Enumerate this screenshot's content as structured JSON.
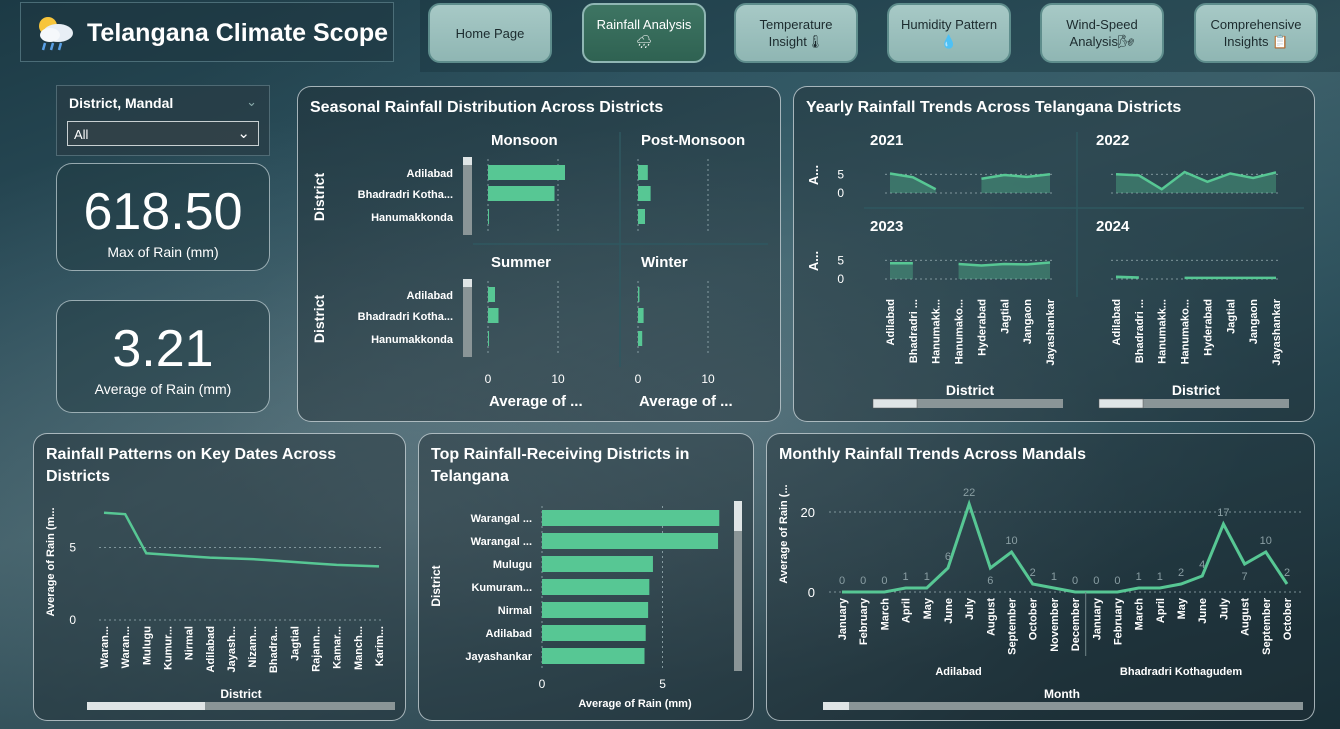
{
  "header": {
    "title": "Telangana Climate Scope"
  },
  "nav": {
    "home": "Home Page",
    "rainfall": "Rainfall Analysis🌧",
    "temperature": "Temperature Insight🌡",
    "humidity": "Humidity Pattern 💧",
    "wind": "Wind-Speed Analysis🌬",
    "comprehensive": "Comprehensive Insights 📋"
  },
  "slicer": {
    "label": "District, Mandal",
    "value": "All"
  },
  "cards": {
    "max_rain": {
      "value": "618.50",
      "label": "Max of Rain (mm)"
    },
    "avg_rain": {
      "value": "3.21",
      "label": "Average of Rain (mm)"
    }
  },
  "panels": {
    "seasonal": "Seasonal Rainfall Distribution Across Districts",
    "yearly": "Yearly Rainfall Trends Across Telangana Districts",
    "key_dates": "Rainfall Patterns on Key Dates Across Districts",
    "top_districts": "Top Rainfall-Receiving Districts in Telangana",
    "monthly": "Monthly Rainfall Trends Across Mandals"
  },
  "colors": {
    "accent": "#57c794",
    "grid": "#9ab0b5"
  },
  "chart_data": [
    {
      "type": "bar",
      "title": "Seasonal Rainfall Distribution Across Districts",
      "ylabel": "District",
      "xlabel": "Average of ...",
      "categories": [
        "Adilabad",
        "Bhadradri Kotha...",
        "Hanumakkonda"
      ],
      "xlim": [
        0,
        15
      ],
      "x_ticks": [
        "0",
        "10"
      ],
      "panels": [
        {
          "name": "Monsoon",
          "values": [
            11.0,
            9.5,
            0
          ]
        },
        {
          "name": "Post-Monsoon",
          "values": [
            1.4,
            1.8,
            1.0
          ]
        },
        {
          "name": "Summer",
          "values": [
            1.0,
            1.5,
            0.1
          ]
        },
        {
          "name": "Winter",
          "values": [
            0.2,
            0.8,
            0.6
          ]
        }
      ]
    },
    {
      "type": "area",
      "title": "Yearly Rainfall Trends Across Telangana Districts",
      "ylabel": "A...",
      "xlabel": "District",
      "categories": [
        "Adilabad",
        "Bhadradri ...",
        "Hanumakk...",
        "Hanumako...",
        "Hyderabad",
        "Jagtial",
        "Jangaon",
        "Jayashankar"
      ],
      "y_ticks": [
        "0",
        "5"
      ],
      "ylim": [
        0,
        8
      ],
      "panels": [
        {
          "name": "2021",
          "values": [
            5.2,
            4.2,
            1.0,
            null,
            3.8,
            4.8,
            4.3,
            5.0
          ]
        },
        {
          "name": "2022",
          "values": [
            5.0,
            4.7,
            1.0,
            5.6,
            3.0,
            5.2,
            4.0,
            5.5
          ]
        },
        {
          "name": "2023",
          "values": [
            4.2,
            4.2,
            null,
            4.0,
            3.6,
            4.0,
            3.9,
            4.4
          ]
        },
        {
          "name": "2024",
          "values": [
            0.6,
            0.4,
            null,
            0.3,
            0.3,
            0.3,
            0.3,
            0.3
          ]
        }
      ]
    },
    {
      "type": "line",
      "title": "Rainfall Patterns on Key Dates Across Districts",
      "ylabel": "Average of Rain (m...",
      "xlabel": "District",
      "categories": [
        "Waran...",
        "Waran...",
        "Mulugu",
        "Kumur...",
        "Nirmal",
        "Adilabad",
        "Jayash...",
        "Nizam...",
        "Bhadra...",
        "Jagtial",
        "Rajann...",
        "Kamar...",
        "Manch...",
        "Karim..."
      ],
      "values": [
        7.4,
        7.3,
        4.6,
        4.5,
        4.4,
        4.3,
        4.25,
        4.2,
        4.1,
        4.0,
        3.9,
        3.8,
        3.75,
        3.7
      ],
      "y_ticks": [
        "0",
        "5"
      ],
      "ylim": [
        0,
        8
      ]
    },
    {
      "type": "bar",
      "title": "Top Rainfall-Receiving Districts in Telangana",
      "ylabel": "District",
      "xlabel": "Average of Rain (mm)",
      "categories": [
        "Warangal ...",
        "Warangal ...",
        "Mulugu",
        "Kumuram...",
        "Nirmal",
        "Adilabad",
        "Jayashankar"
      ],
      "values": [
        7.35,
        7.3,
        4.6,
        4.45,
        4.4,
        4.3,
        4.25
      ],
      "x_ticks": [
        "0",
        "5"
      ],
      "xlim": [
        0,
        8.5
      ]
    },
    {
      "type": "line",
      "title": "Monthly Rainfall Trends Across Mandals",
      "ylabel": "Average of Rain (...",
      "xlabel": "Month",
      "groups": [
        "Adilabad",
        "Bhadradri Kothagudem"
      ],
      "categories": [
        "January",
        "February",
        "March",
        "April",
        "May",
        "June",
        "July",
        "August",
        "September",
        "October",
        "November",
        "December",
        "January",
        "February",
        "March",
        "April",
        "May",
        "June",
        "July",
        "August",
        "September",
        "October"
      ],
      "values": [
        0,
        0,
        0,
        1,
        1,
        6,
        22,
        6,
        10,
        2,
        1,
        0,
        0,
        0,
        1,
        1,
        2,
        4,
        17,
        7,
        10,
        2
      ],
      "y_ticks": [
        "0",
        "20"
      ],
      "ylim": [
        0,
        26
      ]
    }
  ]
}
